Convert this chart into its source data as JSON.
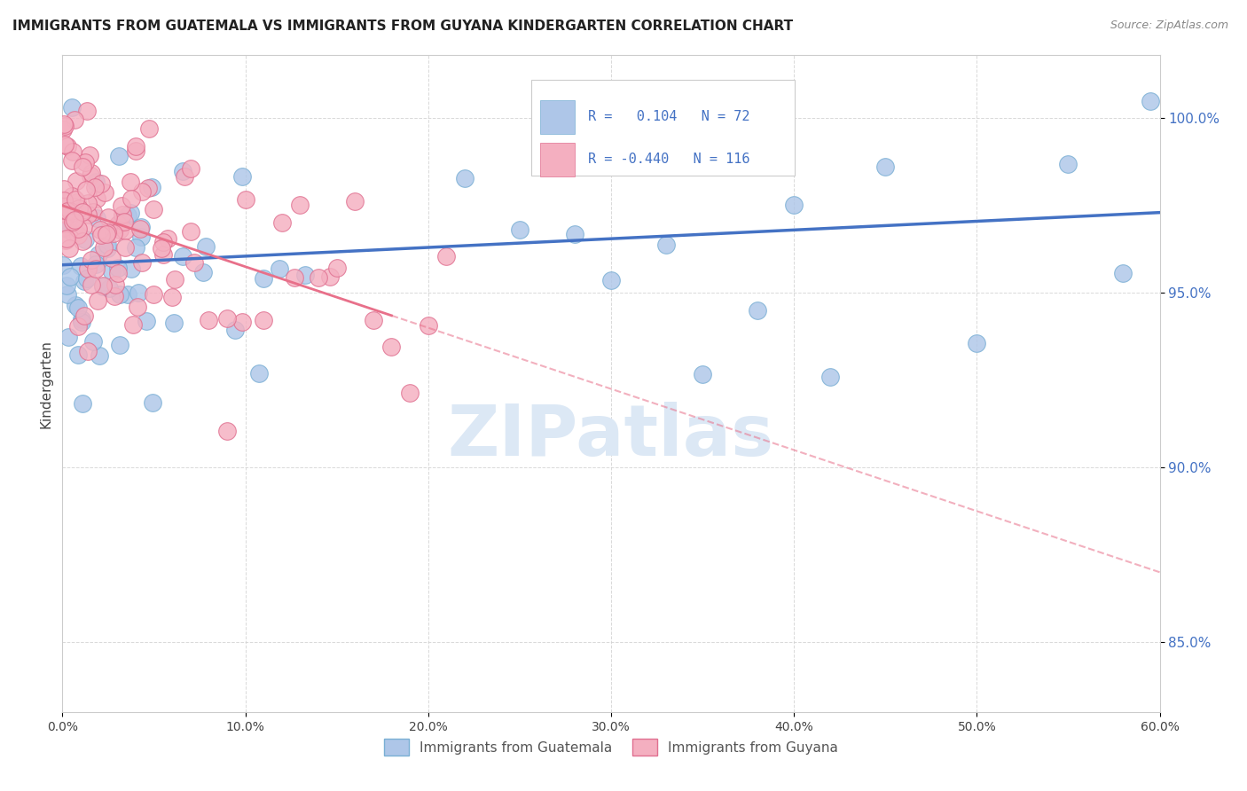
{
  "title": "IMMIGRANTS FROM GUATEMALA VS IMMIGRANTS FROM GUYANA KINDERGARTEN CORRELATION CHART",
  "source": "Source: ZipAtlas.com",
  "ylabel": "Kindergarten",
  "xlim": [
    0.0,
    60.0
  ],
  "ylim": [
    83.0,
    101.8
  ],
  "y_ticks": [
    85.0,
    90.0,
    95.0,
    100.0
  ],
  "x_ticks": [
    0.0,
    10.0,
    20.0,
    30.0,
    40.0,
    50.0,
    60.0
  ],
  "guatemala_color": "#aec6e8",
  "guyana_color": "#f4afc0",
  "guatemala_edge": "#7aafd4",
  "guyana_edge": "#e07090",
  "trend_guat_color": "#4472c4",
  "trend_guya_color": "#e8708a",
  "background_color": "#ffffff",
  "grid_color": "#d0d0d0",
  "watermark_text": "ZIPatlas",
  "watermark_color": "#dce8f5",
  "legend_r_guat": "0.104",
  "legend_n_guat": "72",
  "legend_r_guya": "-0.440",
  "legend_n_guya": "116",
  "legend_label_guat": "Immigrants from Guatemala",
  "legend_label_guya": "Immigrants from Guyana",
  "tick_color_right": "#4472c4",
  "title_color": "#222222",
  "source_color": "#888888"
}
